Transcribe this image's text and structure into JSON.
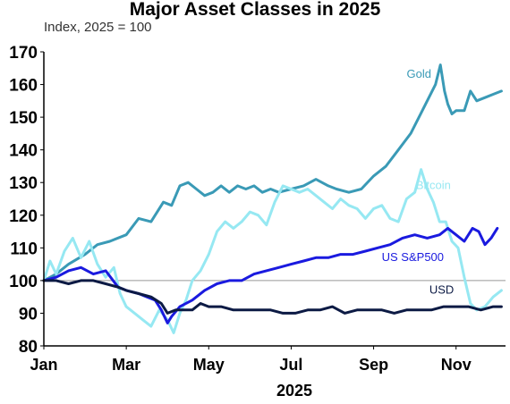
{
  "chart_data": {
    "type": "line",
    "title": "Major Asset Classes in 2025",
    "subtitle": "Index, 2025 = 100",
    "xlabel": "2025",
    "ylabel": "",
    "ylim": [
      80,
      170
    ],
    "yticks": [
      "80",
      "90",
      "100",
      "110",
      "120",
      "130",
      "140",
      "150",
      "160",
      "170"
    ],
    "xlim": [
      1,
      12.2
    ],
    "xticks": [
      {
        "x": 1,
        "label": "Jan"
      },
      {
        "x": 3,
        "label": "Mar"
      },
      {
        "x": 5,
        "label": "May"
      },
      {
        "x": 7,
        "label": "Jul"
      },
      {
        "x": 9,
        "label": "Sep"
      },
      {
        "x": 11,
        "label": "Nov"
      }
    ],
    "reference_line": 100,
    "grid": false,
    "series": [
      {
        "name": "Gold",
        "color": "#3a9ab6",
        "points": [
          [
            1,
            100
          ],
          [
            1.3,
            102
          ],
          [
            1.6,
            105
          ],
          [
            2,
            108
          ],
          [
            2.3,
            111
          ],
          [
            2.6,
            112
          ],
          [
            3,
            114
          ],
          [
            3.3,
            119
          ],
          [
            3.6,
            118
          ],
          [
            3.9,
            124
          ],
          [
            4.1,
            123
          ],
          [
            4.3,
            129
          ],
          [
            4.5,
            130
          ],
          [
            4.7,
            128
          ],
          [
            4.9,
            126
          ],
          [
            5.1,
            127
          ],
          [
            5.3,
            129
          ],
          [
            5.5,
            127
          ],
          [
            5.7,
            129
          ],
          [
            5.9,
            128
          ],
          [
            6.1,
            129
          ],
          [
            6.3,
            127
          ],
          [
            6.5,
            128
          ],
          [
            6.7,
            127
          ],
          [
            7,
            128
          ],
          [
            7.3,
            129
          ],
          [
            7.6,
            131
          ],
          [
            7.9,
            129
          ],
          [
            8.1,
            128
          ],
          [
            8.4,
            127
          ],
          [
            8.7,
            128
          ],
          [
            9,
            132
          ],
          [
            9.3,
            135
          ],
          [
            9.6,
            140
          ],
          [
            9.9,
            145
          ],
          [
            10.1,
            150
          ],
          [
            10.3,
            155
          ],
          [
            10.5,
            160
          ],
          [
            10.62,
            166
          ],
          [
            10.72,
            158
          ],
          [
            10.8,
            154
          ],
          [
            10.9,
            151
          ],
          [
            11,
            152
          ],
          [
            11.2,
            152
          ],
          [
            11.35,
            158
          ],
          [
            11.5,
            155
          ],
          [
            11.7,
            156
          ],
          [
            11.9,
            157
          ],
          [
            12.1,
            158
          ]
        ]
      },
      {
        "name": "Bitcoin",
        "color": "#96e8f2",
        "points": [
          [
            1,
            100
          ],
          [
            1.15,
            106
          ],
          [
            1.3,
            102
          ],
          [
            1.5,
            109
          ],
          [
            1.7,
            113
          ],
          [
            1.9,
            107
          ],
          [
            2.1,
            112
          ],
          [
            2.3,
            105
          ],
          [
            2.5,
            101
          ],
          [
            2.7,
            104
          ],
          [
            2.85,
            96
          ],
          [
            3,
            92
          ],
          [
            3.2,
            90
          ],
          [
            3.4,
            88
          ],
          [
            3.6,
            86
          ],
          [
            3.8,
            91
          ],
          [
            4,
            88
          ],
          [
            4.15,
            84
          ],
          [
            4.3,
            90
          ],
          [
            4.45,
            94
          ],
          [
            4.6,
            100
          ],
          [
            4.8,
            103
          ],
          [
            5,
            108
          ],
          [
            5.2,
            115
          ],
          [
            5.4,
            118
          ],
          [
            5.6,
            116
          ],
          [
            5.8,
            118
          ],
          [
            6,
            121
          ],
          [
            6.2,
            120
          ],
          [
            6.4,
            117
          ],
          [
            6.6,
            124
          ],
          [
            6.8,
            129
          ],
          [
            7,
            128
          ],
          [
            7.2,
            127
          ],
          [
            7.4,
            128
          ],
          [
            7.6,
            126
          ],
          [
            7.8,
            124
          ],
          [
            8,
            122
          ],
          [
            8.2,
            125
          ],
          [
            8.4,
            123
          ],
          [
            8.6,
            122
          ],
          [
            8.8,
            119
          ],
          [
            9,
            122
          ],
          [
            9.2,
            123
          ],
          [
            9.4,
            119
          ],
          [
            9.6,
            118
          ],
          [
            9.8,
            125
          ],
          [
            10,
            127
          ],
          [
            10.15,
            134
          ],
          [
            10.3,
            128
          ],
          [
            10.45,
            124
          ],
          [
            10.6,
            118
          ],
          [
            10.75,
            118
          ],
          [
            10.9,
            112
          ],
          [
            11.05,
            110
          ],
          [
            11.2,
            101
          ],
          [
            11.35,
            93
          ],
          [
            11.5,
            91
          ],
          [
            11.7,
            92
          ],
          [
            11.9,
            95
          ],
          [
            12.1,
            97
          ]
        ]
      },
      {
        "name": "US S&P500",
        "color": "#1a1adf",
        "points": [
          [
            1,
            100
          ],
          [
            1.3,
            101
          ],
          [
            1.6,
            103
          ],
          [
            1.9,
            104
          ],
          [
            2.2,
            102
          ],
          [
            2.5,
            103
          ],
          [
            2.8,
            98
          ],
          [
            3,
            97
          ],
          [
            3.3,
            96
          ],
          [
            3.5,
            95
          ],
          [
            3.7,
            94
          ],
          [
            3.85,
            91
          ],
          [
            4,
            87
          ],
          [
            4.1,
            89
          ],
          [
            4.3,
            92
          ],
          [
            4.6,
            94
          ],
          [
            4.9,
            97
          ],
          [
            5.2,
            99
          ],
          [
            5.5,
            100
          ],
          [
            5.8,
            100
          ],
          [
            6.1,
            102
          ],
          [
            6.4,
            103
          ],
          [
            6.7,
            104
          ],
          [
            7,
            105
          ],
          [
            7.3,
            106
          ],
          [
            7.6,
            107
          ],
          [
            7.9,
            107
          ],
          [
            8.2,
            108
          ],
          [
            8.5,
            108
          ],
          [
            8.8,
            109
          ],
          [
            9.1,
            110
          ],
          [
            9.4,
            111
          ],
          [
            9.7,
            113
          ],
          [
            10,
            114
          ],
          [
            10.3,
            113
          ],
          [
            10.6,
            114
          ],
          [
            10.8,
            116
          ],
          [
            11,
            114
          ],
          [
            11.2,
            112
          ],
          [
            11.4,
            116
          ],
          [
            11.55,
            115
          ],
          [
            11.7,
            111
          ],
          [
            11.85,
            113
          ],
          [
            12,
            116
          ]
        ]
      },
      {
        "name": "USD",
        "color": "#0c1a44",
        "points": [
          [
            1,
            100
          ],
          [
            1.3,
            100
          ],
          [
            1.6,
            99
          ],
          [
            1.9,
            100
          ],
          [
            2.2,
            100
          ],
          [
            2.5,
            99
          ],
          [
            2.8,
            98
          ],
          [
            3,
            97
          ],
          [
            3.3,
            96
          ],
          [
            3.6,
            95
          ],
          [
            3.85,
            93
          ],
          [
            4,
            90
          ],
          [
            4.2,
            91
          ],
          [
            4.4,
            91
          ],
          [
            4.6,
            91
          ],
          [
            4.8,
            93
          ],
          [
            5,
            92
          ],
          [
            5.3,
            92
          ],
          [
            5.6,
            91
          ],
          [
            5.9,
            91
          ],
          [
            6.2,
            91
          ],
          [
            6.5,
            91
          ],
          [
            6.8,
            90
          ],
          [
            7.1,
            90
          ],
          [
            7.4,
            91
          ],
          [
            7.7,
            91
          ],
          [
            8,
            92
          ],
          [
            8.3,
            90
          ],
          [
            8.6,
            91
          ],
          [
            8.9,
            91
          ],
          [
            9.2,
            91
          ],
          [
            9.5,
            90
          ],
          [
            9.8,
            91
          ],
          [
            10.1,
            91
          ],
          [
            10.4,
            91
          ],
          [
            10.7,
            92
          ],
          [
            11,
            92
          ],
          [
            11.3,
            92
          ],
          [
            11.6,
            91
          ],
          [
            11.9,
            92
          ],
          [
            12.1,
            92
          ]
        ]
      }
    ],
    "annotations": [
      {
        "text": "Gold",
        "series": 0,
        "x": 10.1,
        "y": 162
      },
      {
        "text": "Bitcoin",
        "series": 1,
        "x": 10.45,
        "y": 128
      },
      {
        "text": "US S&P500",
        "series": 2,
        "x": 9.95,
        "y": 106
      },
      {
        "text": "USD",
        "series": 3,
        "x": 10.65,
        "y": 96
      }
    ]
  }
}
